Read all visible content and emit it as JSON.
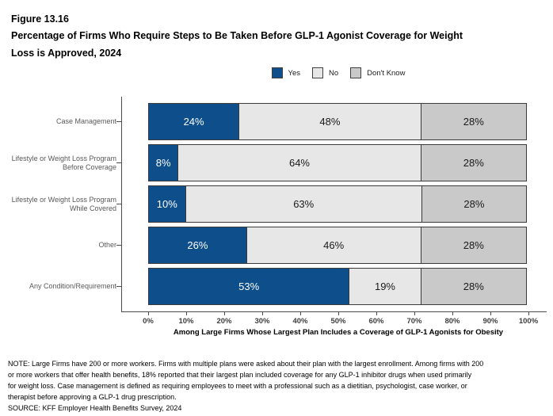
{
  "figure": {
    "number": "Figure 13.16",
    "title": "Percentage of Firms Who Require Steps to Be Taken Before GLP-1 Agonist Coverage for Weight Loss is Approved, 2024"
  },
  "colors": {
    "yes_blue": "#0D4E8B",
    "no_light_gray": "#E7E7E7",
    "dont_know_gray": "#C9C9C9",
    "bar_border": "#3A3A3A",
    "axis": "#4D4D4D",
    "category_label": "#595959"
  },
  "legend": [
    {
      "label": "Yes",
      "color": "#0D4E8B"
    },
    {
      "label": "No",
      "color": "#E7E7E7"
    },
    {
      "label": "Don't Know",
      "color": "#C9C9C9"
    }
  ],
  "chart_data": {
    "type": "bar",
    "orientation": "horizontal",
    "stacked": true,
    "title": "Percentage of Firms Who Require Steps to Be Taken Before GLP-1 Agonist Coverage for Weight Loss is Approved, 2024",
    "categories": [
      "Case Management",
      "Lifestyle or Weight Loss Program\nBefore Coverage",
      "Lifestyle or Weight Loss Program\nWhile Covered",
      "Other",
      "Any Condition/Requirement"
    ],
    "series": [
      {
        "name": "Yes",
        "color": "#0D4E8B",
        "label_color": "#FFFFFF",
        "values": [
          24,
          8,
          10,
          26,
          53
        ]
      },
      {
        "name": "No",
        "color": "#E7E7E7",
        "label_color": "#1A1A1A",
        "values": [
          48,
          64,
          63,
          46,
          19
        ]
      },
      {
        "name": "Don't Know",
        "color": "#C9C9C9",
        "label_color": "#1A1A1A",
        "values": [
          28,
          28,
          28,
          28,
          28
        ]
      }
    ],
    "value_suffix": "%",
    "xlim": [
      0,
      100
    ],
    "x_ticks": [
      "0%",
      "10%",
      "20%",
      "30%",
      "40%",
      "50%",
      "60%",
      "70%",
      "80%",
      "90%",
      "100%"
    ],
    "xlabel": "Among Large Firms Whose Largest Plan Includes a Coverage of GLP-1 Agonists for Obesity",
    "legend_position": "top",
    "grid": false
  },
  "footer": {
    "note_lines": [
      "NOTE: Large Firms have 200 or more workers.  Firms with multiple plans were asked about their plan with the largest enrollment.  Among firms with 200",
      "or more workers that offer health benefits, 18% reported that their largest plan included coverage for any GLP-1 inhibitor drugs when used primarily",
      "for weight loss. Case management is defined as requiring employees to meet with a professional such as a dietitian, psychologist, case worker, or",
      "therapist before approving a GLP-1 drug prescription."
    ],
    "source": "SOURCE: KFF Employer Health Benefits Survey, 2024"
  }
}
